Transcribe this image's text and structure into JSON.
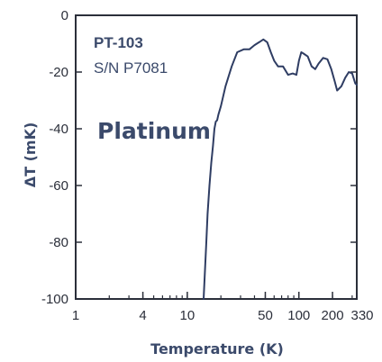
{
  "chart_data": {
    "type": "line",
    "title": "",
    "xlabel": "Temperature (K)",
    "ylabel": "ΔT (mK)",
    "x_scale": "log",
    "xlim": [
      1,
      330
    ],
    "ylim": [
      -100,
      0
    ],
    "x_ticks": [
      {
        "value": 1,
        "label": "1"
      },
      {
        "value": 4,
        "label": "4"
      },
      {
        "value": 10,
        "label": "10"
      },
      {
        "value": 50,
        "label": "50"
      },
      {
        "value": 100,
        "label": "100"
      },
      {
        "value": 200,
        "label": "200"
      },
      {
        "value": 330,
        "label": "330"
      }
    ],
    "y_ticks": [
      {
        "value": 0,
        "label": "0"
      },
      {
        "value": -20,
        "label": "-20"
      },
      {
        "value": -40,
        "label": "-40"
      },
      {
        "value": -60,
        "label": "-60"
      },
      {
        "value": -80,
        "label": "-80"
      },
      {
        "value": -100,
        "label": "-100"
      }
    ],
    "grid": false,
    "annotations": {
      "model": "PT-103",
      "serial": "S/N P7081",
      "material": "Platinum"
    },
    "colors": {
      "line": "#2f3d63",
      "axis": "#2b2f3a",
      "text": "#3b4a6b"
    },
    "series": [
      {
        "x": [
          14,
          14.4,
          14.8,
          15.2,
          15.8,
          16.4,
          17,
          17.5,
          18,
          18.5,
          19,
          20,
          22,
          25,
          28,
          32,
          36,
          40,
          44,
          48,
          52,
          56,
          60,
          65,
          72,
          80,
          88,
          95,
          100,
          105,
          110,
          120,
          130,
          140,
          150,
          165,
          180,
          195,
          210,
          220,
          240,
          260,
          280,
          300,
          320,
          330
        ],
        "y": [
          -100,
          -90,
          -80,
          -70,
          -60,
          -52,
          -46,
          -40,
          -37.5,
          -37,
          -35,
          -32,
          -25,
          -18,
          -13,
          -12,
          -12,
          -10.5,
          -9.5,
          -8.5,
          -9.5,
          -13,
          -16,
          -18,
          -18,
          -21,
          -20.5,
          -21,
          -16,
          -13,
          -13.5,
          -14.5,
          -18,
          -19,
          -17,
          -15,
          -15.5,
          -19,
          -23.5,
          -26.5,
          -25,
          -22,
          -20,
          -20.5,
          -24,
          -24.5
        ]
      }
    ]
  }
}
